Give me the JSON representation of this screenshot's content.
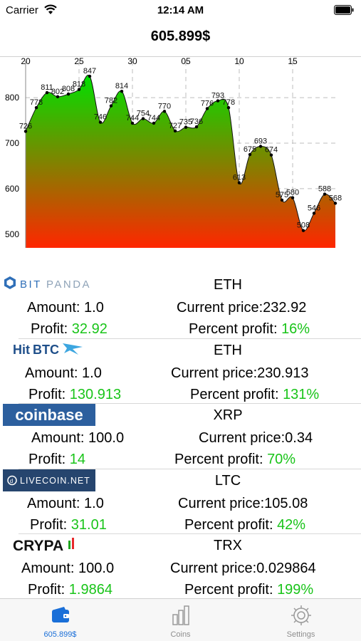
{
  "status": {
    "carrier": "Carrier",
    "time": "12:14 AM"
  },
  "nav": {
    "title": "605.899$"
  },
  "chart_data": {
    "type": "area",
    "x_ticks": [
      "20",
      "25",
      "30",
      "05",
      "10",
      "15"
    ],
    "y_ticks": [
      "800",
      "700",
      "600",
      "500"
    ],
    "ylim": [
      470,
      880
    ],
    "grid": true,
    "values": [
      726,
      778,
      811,
      802,
      808,
      818,
      847,
      746,
      782,
      814,
      744,
      754,
      744,
      770,
      727,
      735,
      736,
      776,
      793,
      778,
      613,
      675,
      693,
      674,
      575,
      580,
      508,
      546,
      588,
      568
    ],
    "point_labels": [
      "726",
      "778",
      "811",
      "802",
      "808",
      "818",
      "847",
      "746",
      "782",
      "814",
      "744",
      "754",
      "744",
      "770",
      "727",
      "735",
      "736",
      "776",
      "793",
      "778",
      "613",
      "675",
      "693",
      "674",
      "575",
      "580",
      "508",
      "546",
      "588",
      "568"
    ],
    "colors": {
      "top": "#00e100",
      "bottom": "#ff2600",
      "line": "#111111"
    }
  },
  "entries": [
    {
      "exchange": "BITPANDA",
      "logo": "bitpanda-logo",
      "coin": "ETH",
      "amount_label": "Amount: 1.0",
      "price_label": "Current price:232.92",
      "profit_label": "Profit: ",
      "profit_value": "32.92",
      "percent_label": "Percent profit: ",
      "percent_value": "16%"
    },
    {
      "exchange": "HitBTC",
      "logo": "hitbtc-logo",
      "coin": "ETH",
      "amount_label": "Amount: 1.0",
      "price_label": "Current price:230.913",
      "profit_label": "Profit: ",
      "profit_value": "130.913",
      "percent_label": "Percent profit: ",
      "percent_value": "131%"
    },
    {
      "exchange": "coinbase",
      "logo": "coinbase-logo",
      "coin": "XRP",
      "amount_label": "Amount: 100.0",
      "price_label": "Current price:0.34",
      "profit_label": "Profit: ",
      "profit_value": "14",
      "percent_label": "Percent profit: ",
      "percent_value": "70%"
    },
    {
      "exchange": "LIVECOIN.NET",
      "logo": "livecoin-logo",
      "coin": "LTC",
      "amount_label": "Amount: 1.0",
      "price_label": "Current price:105.08",
      "profit_label": "Profit: ",
      "profit_value": "31.01",
      "percent_label": "Percent profit: ",
      "percent_value": "42%"
    },
    {
      "exchange": "CRYPA",
      "logo": "crypa-logo",
      "coin": "TRX",
      "amount_label": "Amount: 100.0",
      "price_label": "Current price:0.029864",
      "profit_label": "Profit: ",
      "profit_value": "1.9864",
      "percent_label": "Percent profit: ",
      "percent_value": "199%"
    }
  ],
  "tabs": [
    {
      "label": "605.899$",
      "icon": "wallet-icon",
      "active": true
    },
    {
      "label": "Coins",
      "icon": "bar-chart-icon",
      "active": false
    },
    {
      "label": "Settings",
      "icon": "gear-icon",
      "active": false
    }
  ]
}
